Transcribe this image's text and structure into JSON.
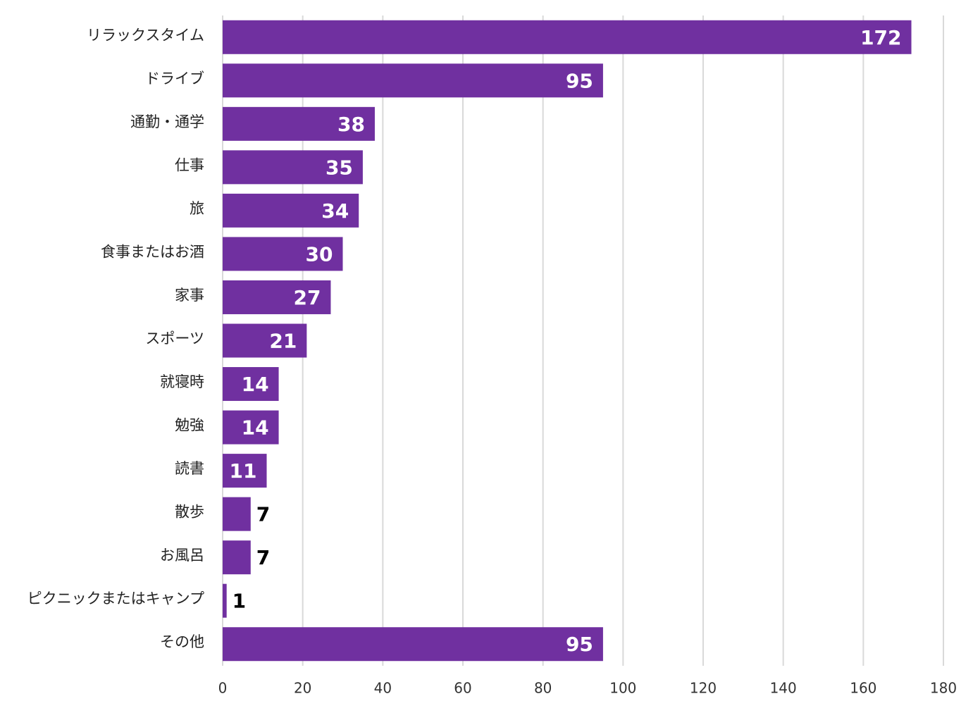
{
  "chart_data": {
    "type": "barh",
    "categories": [
      "リラックスタイム",
      "ドライブ",
      "通勤・通学",
      "仕事",
      "旅",
      "食事またはお酒",
      "家事",
      "スポーツ",
      "就寝時",
      "勉強",
      "読書",
      "散歩",
      "お風呂",
      "ピクニックまたはキャンプ",
      "その他"
    ],
    "values": [
      172,
      95,
      38,
      35,
      34,
      30,
      27,
      21,
      14,
      14,
      11,
      7,
      7,
      1,
      95
    ],
    "color": "#7030a0",
    "xlim": [
      0,
      180
    ],
    "xticks": [
      0,
      20,
      40,
      60,
      80,
      100,
      120,
      140,
      160,
      180
    ],
    "grid": true
  }
}
